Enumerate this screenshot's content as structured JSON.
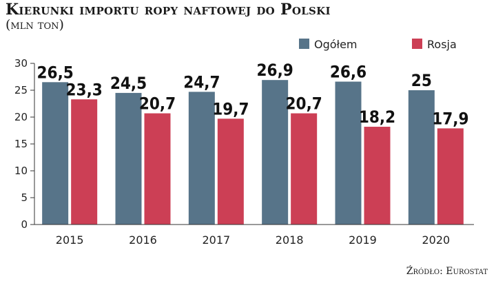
{
  "header": {
    "title": "Kierunki importu ropy naftowej do Polski",
    "subtitle": "(mln ton)"
  },
  "footer": {
    "source": "Źródło: Eurostat"
  },
  "colors": {
    "series_ogolem": "#577489",
    "series_rosja": "#cc3f55",
    "background": "#ffffff"
  },
  "chart_data": {
    "type": "bar",
    "categories": [
      "2015",
      "2016",
      "2017",
      "2018",
      "2019",
      "2020"
    ],
    "series": [
      {
        "name": "Ogółem",
        "values": [
          26.5,
          24.5,
          24.7,
          26.9,
          26.6,
          25
        ],
        "labels": [
          "26,5",
          "24,5",
          "24,7",
          "26,9",
          "26,6",
          "25"
        ]
      },
      {
        "name": "Rosja",
        "values": [
          23.3,
          20.7,
          19.7,
          20.7,
          18.2,
          17.9
        ],
        "labels": [
          "23,3",
          "20,7",
          "19,7",
          "20,7",
          "18,2",
          "17,9"
        ]
      }
    ],
    "yticks": [
      0,
      5,
      10,
      15,
      20,
      25,
      30
    ],
    "ylim": [
      0,
      30
    ],
    "grid": false,
    "legend": "top-right"
  }
}
